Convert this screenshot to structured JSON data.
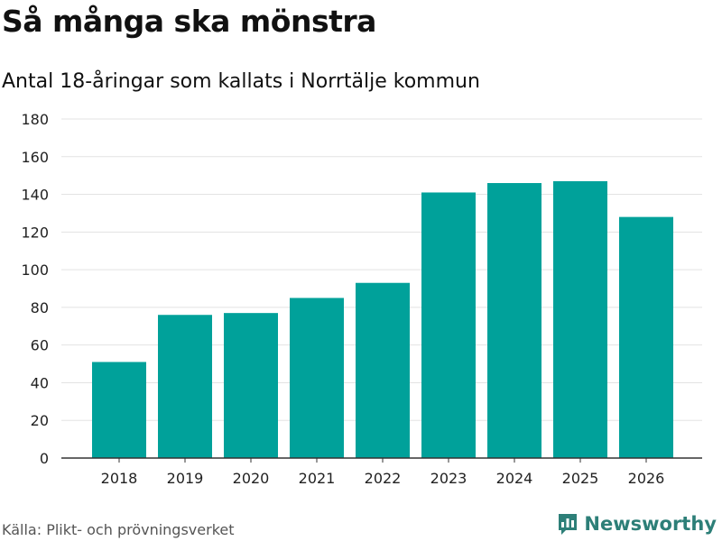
{
  "header": {
    "title": "Så många ska mönstra",
    "subtitle": "Antal 18-åringar som kallats i Norrtälje kommun"
  },
  "footer": {
    "source": "Källa: Plikt- och prövningsverket",
    "brand": "Newsworthy",
    "brand_icon": "bar-chart-speech-icon"
  },
  "colors": {
    "bar": "#00a19a",
    "grid": "#e3e3e3",
    "axis": "#333333",
    "brand": "#2d7f78"
  },
  "chart_data": {
    "type": "bar",
    "title": "Så många ska mönstra",
    "subtitle": "Antal 18-åringar som kallats i Norrtälje kommun",
    "categories": [
      "2018",
      "2019",
      "2020",
      "2021",
      "2022",
      "2023",
      "2024",
      "2025",
      "2026"
    ],
    "values": [
      51,
      76,
      77,
      85,
      93,
      141,
      146,
      147,
      128
    ],
    "ylim": [
      0,
      180
    ],
    "yticks": [
      0,
      20,
      40,
      60,
      80,
      100,
      120,
      140,
      160,
      180
    ],
    "xlabel": "",
    "ylabel": "",
    "grid": true
  }
}
